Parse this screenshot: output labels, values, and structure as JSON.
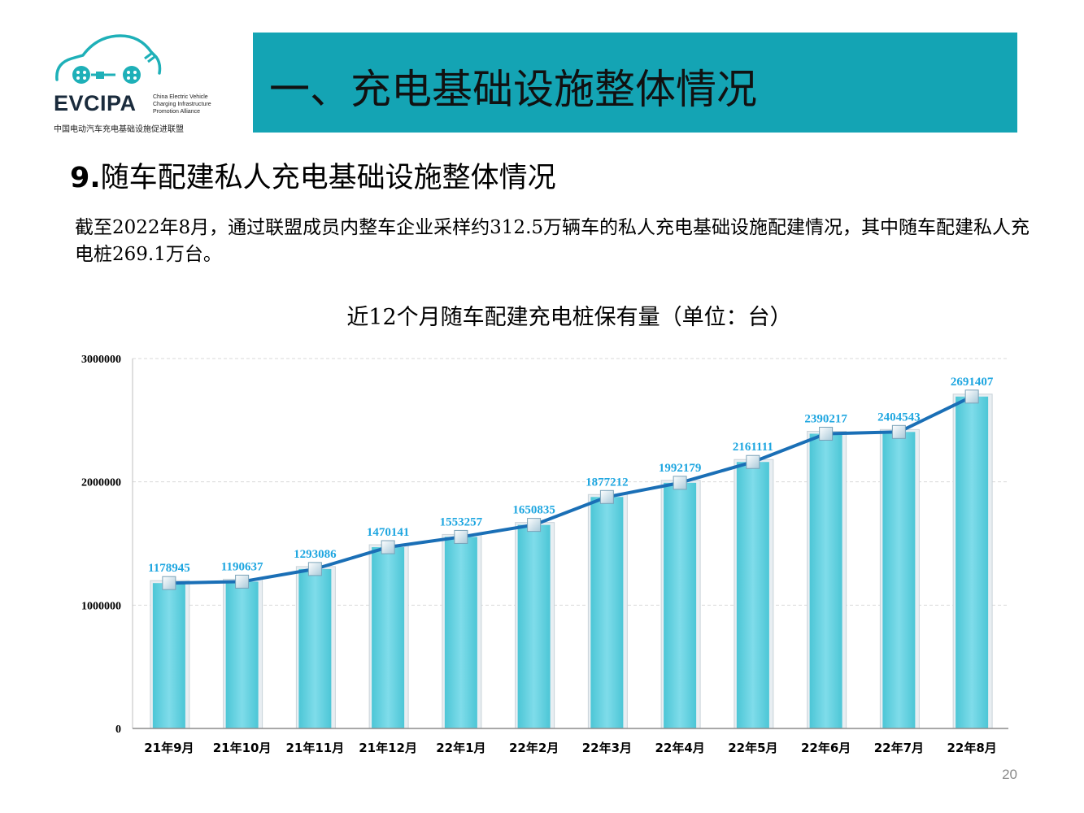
{
  "logo": {
    "brand": "EVCIPA",
    "subtitle_lines": [
      "China Electric Vehicle",
      "Charging Infrastructure",
      "Promotion Alliance"
    ],
    "chinese_name": "中国电动汽车充电基础设施促进联盟"
  },
  "header": {
    "title": "一、充电基础设施整体情况"
  },
  "section": {
    "number": "9.",
    "heading": "随车配建私人充电基础设施整体情况"
  },
  "intro_text": "截至2022年8月，通过联盟成员内整车企业采样约312.5万辆车的私人充电基础设施配建情况，其中随车配建私人充电桩269.1万台。",
  "page_number": "20",
  "colors": {
    "title_bar": "#14a4b4",
    "bar": "#6fd6e4",
    "line": "#1a6fb6",
    "label": "#1ea6e0"
  },
  "chart_data": {
    "type": "bar",
    "title": "近12个月随车配建充电桩保有量（单位：台）",
    "categories": [
      "21年9月",
      "21年10月",
      "21年11月",
      "21年12月",
      "22年1月",
      "22年2月",
      "22年3月",
      "22年4月",
      "22年5月",
      "22年6月",
      "22年7月",
      "22年8月"
    ],
    "values": [
      1178945,
      1190637,
      1293086,
      1470141,
      1553257,
      1650835,
      1877212,
      1992179,
      2161111,
      2390217,
      2404543,
      2691407
    ],
    "overlay_line": true,
    "ylim": [
      0,
      3000000
    ],
    "yticks": [
      "0",
      "1000000",
      "2000000",
      "3000000"
    ],
    "grid": true,
    "xlabel": "",
    "ylabel": ""
  }
}
